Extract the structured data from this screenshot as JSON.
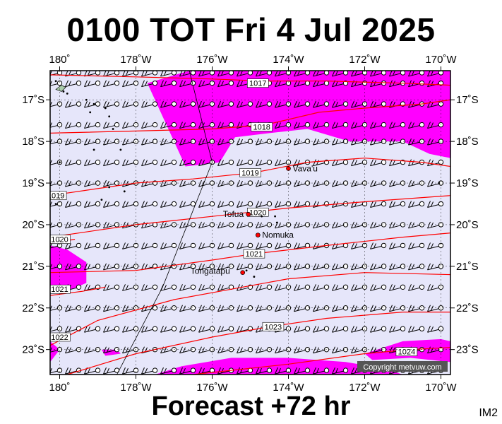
{
  "title": "0100 TOT Fri 4 Jul 2025",
  "footer": "Forecast +72 hr",
  "image_code": "IM2",
  "copyright": "Copyright metvuw.com",
  "colors": {
    "background": "#e6e6fa",
    "rain": "#ff00ff",
    "isobar": "#ff0000",
    "dateline": "#000000",
    "wind_barb": "#000000"
  },
  "map": {
    "lon_range": [
      -180.25,
      -169.75
    ],
    "lat_range": [
      -23.6,
      -16.3
    ],
    "lon_ticks": [
      {
        "lon": -180,
        "label": "180˚"
      },
      {
        "lon": -178,
        "label": "178˚W"
      },
      {
        "lon": -176,
        "label": "176˚W"
      },
      {
        "lon": -174,
        "label": "174˚W"
      },
      {
        "lon": -172,
        "label": "172˚W"
      },
      {
        "lon": -170,
        "label": "170˚W"
      }
    ],
    "lat_ticks": [
      {
        "lat": -17,
        "label": "17˚S"
      },
      {
        "lat": -18,
        "label": "18˚S"
      },
      {
        "lat": -19,
        "label": "19˚S"
      },
      {
        "lat": -20,
        "label": "20˚S"
      },
      {
        "lat": -21,
        "label": "21˚S"
      },
      {
        "lat": -22,
        "label": "22˚S"
      },
      {
        "lat": -23,
        "label": "23˚S"
      }
    ],
    "isobars": [
      {
        "hpa": "1017",
        "points": [
          [
            -180.25,
            -16.4
          ],
          [
            -178,
            -16.45
          ],
          [
            -176,
            -16.5
          ],
          [
            -174.6,
            -16.55
          ],
          [
            -173,
            -16.55
          ],
          [
            -171,
            -16.6
          ],
          [
            -169.75,
            -16.65
          ]
        ],
        "label": "1017",
        "label_at": [
          -174.8,
          -16.6
        ]
      },
      {
        "hpa": "1018",
        "points": [
          [
            -180.25,
            -17.8
          ],
          [
            -178,
            -17.75
          ],
          [
            -176,
            -17.7
          ],
          [
            -174.6,
            -17.6
          ],
          [
            -173.2,
            -17.3
          ],
          [
            -172,
            -17.2
          ],
          [
            -170.5,
            -17.1
          ],
          [
            -169.75,
            -17.0
          ]
        ],
        "label": "1018",
        "label_at": [
          -174.7,
          -17.65
        ]
      },
      {
        "hpa": "1019",
        "points": [
          [
            -180.25,
            -19.3
          ],
          [
            -178,
            -19.0
          ],
          [
            -176.5,
            -18.9
          ],
          [
            -174.9,
            -18.75
          ],
          [
            -173.5,
            -18.5
          ],
          [
            -172,
            -18.4
          ],
          [
            -170.5,
            -18.5
          ],
          [
            -169.75,
            -18.6
          ]
        ],
        "label": "1019",
        "label_at": [
          -175.0,
          -18.75
        ]
      },
      {
        "hpa": "1020",
        "points": [
          [
            -180.25,
            -20.3
          ],
          [
            -178,
            -20.0
          ],
          [
            -176,
            -19.8
          ],
          [
            -175.0,
            -19.7
          ],
          [
            -174,
            -19.6
          ],
          [
            -172,
            -19.45
          ],
          [
            -169.75,
            -19.3
          ]
        ],
        "label": "1020",
        "label_at": [
          -174.8,
          -19.7
        ]
      },
      {
        "hpa": "1021",
        "points": [
          [
            -180.25,
            -21.15
          ],
          [
            -178,
            -21.1
          ],
          [
            -176,
            -20.85
          ],
          [
            -174.9,
            -20.7
          ],
          [
            -173,
            -20.5
          ],
          [
            -171,
            -20.3
          ],
          [
            -169.75,
            -20.2
          ]
        ],
        "label": "1021",
        "label_at": [
          -174.9,
          -20.7
        ]
      },
      {
        "hpa": "1022",
        "points": [
          [
            -180.25,
            -22.9
          ],
          [
            -179,
            -22.3
          ],
          [
            -177,
            -21.8
          ],
          [
            -175.2,
            -21.5
          ],
          [
            -174,
            -21.3
          ],
          [
            -172,
            -21.15
          ],
          [
            -169.75,
            -21.2
          ]
        ],
        "label": "1022",
        "label_at": [
          -180.0,
          -22.7
        ]
      },
      {
        "hpa": "1023",
        "points": [
          [
            -179.8,
            -23.6
          ],
          [
            -178,
            -23.1
          ],
          [
            -176,
            -22.7
          ],
          [
            -174.5,
            -22.45
          ],
          [
            -173,
            -22.25
          ],
          [
            -171,
            -22.1
          ],
          [
            -169.75,
            -22.1
          ]
        ],
        "label": "1023",
        "label_at": [
          -174.4,
          -22.45
        ]
      },
      {
        "hpa": "1024",
        "points": [
          [
            -176.5,
            -23.6
          ],
          [
            -174,
            -23.35
          ],
          [
            -172,
            -23.1
          ],
          [
            -170.8,
            -23.0
          ],
          [
            -169.75,
            -22.95
          ]
        ],
        "label": "1024",
        "label_at": [
          -170.9,
          -23.05
        ]
      },
      {
        "hpa": "1021-west",
        "points": [
          [
            -180.25,
            -21.7
          ],
          [
            -179.4,
            -21.6
          ],
          [
            -178.8,
            -21.5
          ]
        ],
        "label": "1021",
        "label_at": [
          -180.0,
          -21.55
        ]
      },
      {
        "hpa": "1020-west",
        "points": [
          [
            -180.25,
            -20.45
          ],
          [
            -179.6,
            -20.35
          ]
        ],
        "label": "1020",
        "label_at": [
          -180.0,
          -20.35
        ]
      },
      {
        "hpa": "1019-west",
        "points": [
          [
            -180.25,
            -19.3
          ],
          [
            -179.9,
            -19.28
          ]
        ],
        "label": "1019",
        "label_at": [
          -180.1,
          -19.3
        ]
      }
    ],
    "rain_areas": [
      [
        [
          -176.6,
          -16.3
        ],
        [
          -169.75,
          -16.3
        ],
        [
          -169.75,
          -18.4
        ],
        [
          -170.3,
          -18.3
        ],
        [
          -171,
          -18.0
        ],
        [
          -172.4,
          -18.0
        ],
        [
          -173.5,
          -17.7
        ],
        [
          -174.5,
          -17.8
        ],
        [
          -175.4,
          -17.9
        ],
        [
          -175.8,
          -18.5
        ],
        [
          -176.7,
          -18.6
        ],
        [
          -177.0,
          -18.0
        ],
        [
          -177.4,
          -17.2
        ],
        [
          -177.7,
          -16.6
        ]
      ],
      [
        [
          -180.25,
          -20.5
        ],
        [
          -179.8,
          -20.6
        ],
        [
          -179.3,
          -20.9
        ],
        [
          -179.3,
          -21.4
        ],
        [
          -179.8,
          -21.6
        ],
        [
          -180.25,
          -21.5
        ]
      ],
      [
        [
          -180.25,
          -22.8
        ],
        [
          -180.0,
          -23.0
        ],
        [
          -180.25,
          -23.3
        ]
      ],
      [
        [
          -178.9,
          -23.0
        ],
        [
          -178.5,
          -23.0
        ],
        [
          -178.4,
          -23.1
        ],
        [
          -178.8,
          -23.15
        ]
      ],
      [
        [
          -177.5,
          -23.6
        ],
        [
          -176.8,
          -23.4
        ],
        [
          -175.5,
          -23.2
        ],
        [
          -174.0,
          -23.2
        ],
        [
          -172.5,
          -23.3
        ],
        [
          -171.5,
          -23.45
        ],
        [
          -171.0,
          -23.6
        ]
      ],
      [
        [
          -172.0,
          -23.1
        ],
        [
          -171.0,
          -22.8
        ],
        [
          -170.0,
          -22.75
        ],
        [
          -169.75,
          -22.8
        ],
        [
          -169.75,
          -23.3
        ],
        [
          -170.8,
          -23.2
        ],
        [
          -171.8,
          -23.25
        ]
      ]
    ],
    "dateline": [
      [
        -176.6,
        -16.3
      ],
      [
        -176.0,
        -18.5
      ],
      [
        -177.3,
        -21.5
      ],
      [
        -178.5,
        -23.6
      ]
    ],
    "places": [
      {
        "name": "Vava'u",
        "lon": -174.0,
        "lat": -18.65,
        "dx": 6,
        "dy": 4
      },
      {
        "name": "Tofua",
        "lon": -175.05,
        "lat": -19.75,
        "dx": -36,
        "dy": 4
      },
      {
        "name": "Nomuka",
        "lon": -174.8,
        "lat": -20.25,
        "dx": 6,
        "dy": 4
      },
      {
        "name": "Tongatapu",
        "lon": -175.2,
        "lat": -21.15,
        "dx": -74,
        "dy": 2
      }
    ],
    "barb_lats": [
      -16.35,
      -16.6,
      -17.1,
      -17.6,
      -18.0,
      -18.5,
      -19.0,
      -19.5,
      -20.0,
      -20.5,
      -21.0,
      -21.5,
      -22.0,
      -22.5,
      -23.0,
      -23.5
    ],
    "barb_lons": [
      -180,
      -179.5,
      -179,
      -178.5,
      -178,
      -177.5,
      -177,
      -176.5,
      -176,
      -175.5,
      -175,
      -174.5,
      -174,
      -173.5,
      -173,
      -172.5,
      -172,
      -171.5,
      -171,
      -170.5,
      -170
    ]
  }
}
